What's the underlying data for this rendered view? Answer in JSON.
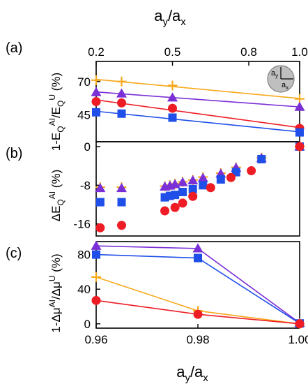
{
  "colors": {
    "red": "#ee1c24",
    "blue": "#1f4fe8",
    "purple": "#7b2fd6",
    "orange": "#f7a81b",
    "inset_fill": "#bfbfbf",
    "inset_stroke": "#808080"
  },
  "chart_data": [
    {
      "panel": "(a)",
      "type": "scatter",
      "xlabel": "a_y/a_x",
      "x_axis_position": "top",
      "xlim": [
        0.2,
        1.0
      ],
      "xticks": [
        0.2,
        0.5,
        0.8,
        1.0
      ],
      "xtick_labels": [
        "0.2",
        "0.5",
        "0.8",
        "1.0"
      ],
      "ylabel": "1-E_Q^AI/E_Q^U (%)",
      "ylim": [
        25,
        85
      ],
      "yticks": [
        45,
        70
      ],
      "ytick_labels": [
        "45",
        "70"
      ],
      "inset": {
        "labels": [
          "a_y",
          "a_x"
        ],
        "shape": "circle"
      },
      "series": [
        {
          "color": "orange",
          "marker": "plus",
          "x": [
            0.2,
            0.3,
            0.5,
            1.0
          ],
          "y": [
            71,
            70,
            67,
            57
          ],
          "fit_line": true
        },
        {
          "color": "purple",
          "marker": "triangle",
          "x": [
            0.2,
            0.3,
            0.5,
            1.0
          ],
          "y": [
            62,
            61,
            58,
            51
          ],
          "fit_line": true
        },
        {
          "color": "red",
          "marker": "circle",
          "x": [
            0.2,
            0.3,
            0.5,
            1.0
          ],
          "y": [
            55,
            54,
            50,
            35
          ],
          "fit_line": true
        },
        {
          "color": "blue",
          "marker": "square",
          "x": [
            0.2,
            0.3,
            0.5,
            1.0
          ],
          "y": [
            47,
            46,
            43,
            32
          ],
          "fit_line": true
        }
      ]
    },
    {
      "panel": "(b)",
      "type": "scatter",
      "xlim": [
        0.96,
        1.0
      ],
      "ylabel": "ΔE_Q^AI (%)",
      "ylim": [
        -18.5,
        1
      ],
      "yticks": [
        0,
        -8,
        -16
      ],
      "ytick_labels": [
        "0",
        "-8",
        "-16"
      ],
      "series": [
        {
          "color": "orange",
          "marker": "plus",
          "x": [
            0.9608,
            0.965,
            0.9735,
            0.9745,
            0.9755,
            0.977,
            0.979,
            0.981,
            0.9845,
            0.9875,
            0.9925,
            1.0
          ],
          "y": [
            -8.4,
            -8.4,
            -8.2,
            -8.0,
            -7.7,
            -7.3,
            -6.9,
            -6.3,
            -5.5,
            -4.3,
            -2.3,
            0
          ]
        },
        {
          "color": "purple",
          "marker": "triangle",
          "x": [
            0.9608,
            0.965,
            0.9735,
            0.9745,
            0.9755,
            0.977,
            0.979,
            0.981,
            0.9845,
            0.9875,
            0.9925,
            1.0
          ],
          "y": [
            -8.6,
            -8.6,
            -8.3,
            -8.1,
            -7.8,
            -7.4,
            -7.0,
            -6.5,
            -5.6,
            -4.4,
            -2.4,
            0
          ]
        },
        {
          "color": "blue",
          "marker": "square",
          "x": [
            0.9608,
            0.965,
            0.9735,
            0.9745,
            0.9755,
            0.977,
            0.979,
            0.981,
            0.9845,
            0.9875,
            0.9925,
            1.0
          ],
          "y": [
            -11.5,
            -11.5,
            -10.5,
            -10.2,
            -10.0,
            -9.4,
            -8.8,
            -8.0,
            -6.8,
            -5.3,
            -2.6,
            0
          ]
        },
        {
          "color": "red",
          "marker": "circle",
          "x": [
            0.9608,
            0.965,
            0.9735,
            0.9755,
            0.977,
            0.979,
            0.9825,
            0.9865,
            0.9905,
            1.0
          ],
          "y": [
            -16.8,
            -16.3,
            -13.3,
            -12.6,
            -11.7,
            -10.3,
            -8.5,
            -6.4,
            -5.0,
            0
          ]
        }
      ]
    },
    {
      "panel": "(c)",
      "type": "line",
      "xlabel": "a_y/a_x",
      "xlim": [
        0.96,
        1.0
      ],
      "xticks": [
        0.96,
        0.98,
        1.0
      ],
      "xtick_labels": [
        "0.96",
        "0.98",
        "1.00"
      ],
      "ylabel": "1-Δμ^AI/Δμ^U (%)",
      "ylim": [
        -5,
        95
      ],
      "yticks": [
        0,
        40,
        80
      ],
      "ytick_labels": [
        "0",
        "40",
        "80"
      ],
      "series": [
        {
          "color": "purple",
          "marker": "triangle",
          "x": [
            0.96,
            0.98,
            1.0
          ],
          "y": [
            90,
            87,
            1
          ]
        },
        {
          "color": "blue",
          "marker": "square",
          "x": [
            0.96,
            0.98,
            1.0
          ],
          "y": [
            80,
            76,
            0.5
          ]
        },
        {
          "color": "orange",
          "marker": "plus",
          "x": [
            0.96,
            0.98,
            1.0
          ],
          "y": [
            54,
            15,
            0
          ]
        },
        {
          "color": "red",
          "marker": "circle",
          "x": [
            0.96,
            0.98,
            1.0
          ],
          "y": [
            27,
            11,
            0
          ]
        }
      ]
    }
  ]
}
